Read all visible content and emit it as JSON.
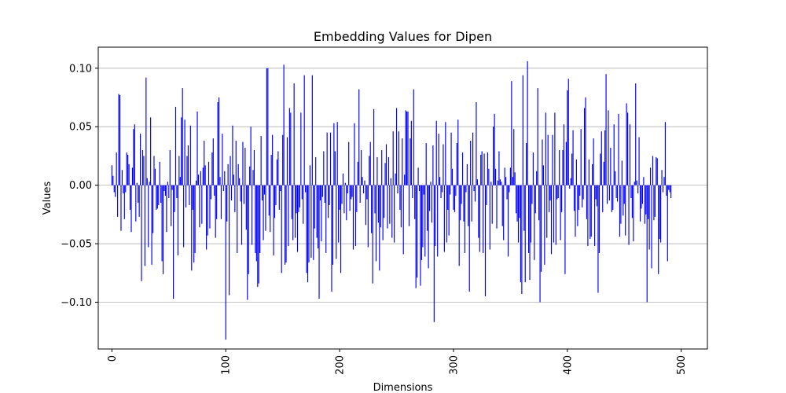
{
  "chart_data": {
    "type": "bar",
    "title": "Embedding Values for Dipen",
    "xlabel": "Dimensions",
    "ylabel": "Values",
    "xlim": [
      -12,
      523
    ],
    "ylim": [
      -0.14,
      0.118
    ],
    "grid": "y",
    "bar_color": "#0000ff",
    "xticks": [
      0,
      100,
      200,
      300,
      400,
      500
    ],
    "yticks": [
      -0.1,
      -0.05,
      0.0,
      0.05,
      0.1
    ],
    "xtick_labels": [
      "0",
      "100",
      "200",
      "300",
      "400",
      "500"
    ],
    "ytick_labels": [
      "−0.10",
      "−0.05",
      "0.00",
      "0.05",
      "0.10"
    ],
    "series": [
      {
        "values": [
          0.017,
          0.008,
          -0.006,
          -0.01,
          0.028,
          -0.027,
          0.078,
          0.077,
          -0.039,
          0.013,
          -0.007,
          -0.029,
          -0.006,
          0.028,
          0.026,
          0.018,
          -0.021,
          -0.04,
          0.015,
          0.048,
          0.052,
          -0.031,
          0.002,
          -0.015,
          -0.027,
          0.044,
          -0.082,
          0.03,
          0.025,
          -0.069,
          0.092,
          0.006,
          -0.053,
          0.003,
          0.058,
          -0.068,
          -0.041,
          0.025,
          0.014,
          -0.021,
          -0.02,
          -0.017,
          0.02,
          -0.015,
          -0.065,
          -0.076,
          -0.005,
          -0.009,
          -0.04,
          0.003,
          -0.011,
          0.03,
          -0.035,
          -0.004,
          -0.097,
          -0.023,
          0.067,
          -0.011,
          -0.06,
          0.025,
          0.007,
          0.058,
          0.083,
          -0.053,
          0.056,
          -0.019,
          0.025,
          0.034,
          -0.017,
          0.051,
          -0.073,
          -0.021,
          -0.066,
          -0.058,
          0.004,
          0.063,
          0.009,
          -0.036,
          0.012,
          -0.033,
          0.015,
          0.038,
          0.017,
          -0.055,
          -0.043,
          0.02,
          -0.037,
          -0.012,
          0.028,
          0.04,
          -0.009,
          -0.045,
          -0.029,
          0.071,
          0.075,
          0.007,
          -0.029,
          0.044,
          -0.005,
          0.012,
          -0.132,
          -0.031,
          0.018,
          -0.094,
          0.025,
          -0.013,
          0.051,
          0.009,
          -0.023,
          0.038,
          -0.058,
          0.018,
          0.006,
          -0.014,
          -0.051,
          0.037,
          -0.016,
          0.032,
          -0.038,
          -0.098,
          -0.076,
          0.016,
          0.05,
          -0.051,
          0.013,
          0.03,
          -0.058,
          -0.065,
          -0.087,
          -0.084,
          -0.058,
          0.042,
          -0.013,
          -0.047,
          -0.008,
          -0.039,
          0.1,
          0.1,
          -0.026,
          -0.04,
          0.026,
          0.043,
          -0.06,
          -0.028,
          -0.017,
          0.022,
          0.029,
          -0.021,
          -0.005,
          -0.075,
          0.043,
          0.103,
          -0.068,
          -0.066,
          0.041,
          -0.052,
          0.066,
          0.062,
          -0.029,
          -0.047,
          0.087,
          -0.045,
          -0.024,
          -0.057,
          -0.023,
          -0.019,
          0.062,
          -0.012,
          -0.033,
          0.094,
          -0.006,
          -0.075,
          -0.083,
          -0.066,
          0.017,
          -0.062,
          0.094,
          -0.064,
          -0.037,
          0.024,
          -0.045,
          -0.054,
          -0.097,
          -0.013,
          -0.048,
          -0.01,
          0.029,
          -0.015,
          -0.058,
          0.045,
          -0.028,
          -0.017,
          0.045,
          -0.091,
          -0.068,
          0.053,
          0.029,
          -0.063,
          0.054,
          -0.049,
          -0.021,
          -0.075,
          -0.016,
          0.01,
          -0.024,
          0.002,
          -0.03,
          -0.007,
          0.037,
          -0.022,
          -0.012,
          -0.01,
          -0.055,
          0.053,
          -0.052,
          -0.023,
          0.02,
          0.082,
          -0.015,
          0.03,
          0.007,
          -0.007,
          0.004,
          -0.034,
          -0.012,
          -0.053,
          0.025,
          0.037,
          -0.041,
          -0.084,
          0.065,
          -0.024,
          -0.065,
          0.024,
          -0.032,
          -0.073,
          -0.036,
          0.03,
          -0.047,
          -0.028,
          0.019,
          0.035,
          -0.037,
          0.024,
          -0.033,
          0.006,
          -0.045,
          0.046,
          -0.049,
          0.01,
          0.066,
          -0.007,
          0.046,
          -0.021,
          -0.036,
          0.04,
          -0.059,
          0.009,
          0.064,
          0.063,
          0.063,
          -0.035,
          0.04,
          0.055,
          -0.011,
          0.082,
          -0.029,
          -0.088,
          -0.079,
          0.015,
          -0.005,
          -0.086,
          -0.064,
          -0.053,
          -0.008,
          -0.061,
          0.036,
          -0.039,
          -0.071,
          -0.022,
          0.003,
          -0.032,
          0.034,
          -0.117,
          -0.052,
          0.055,
          -0.061,
          0.044,
          0.007,
          -0.011,
          -0.006,
          0.035,
          -0.057,
          0.054,
          -0.049,
          -0.021,
          -0.043,
          -0.008,
          0.045,
          0.014,
          -0.021,
          -0.023,
          -0.009,
          0.036,
          0.056,
          -0.069,
          -0.03,
          -0.016,
          0.028,
          -0.031,
          -0.058,
          -0.006,
          0.018,
          -0.035,
          -0.091,
          0.038,
          -0.031,
          0.045,
          -0.005,
          -0.014,
          0.071,
          0.005,
          -0.045,
          -0.057,
          0.026,
          0.029,
          -0.058,
          0.027,
          -0.095,
          -0.017,
          0.028,
          0.014,
          -0.055,
          0.003,
          -0.033,
          0.05,
          0.061,
          0.014,
          -0.037,
          0.004,
          0.029,
          0.005,
          0.003,
          -0.035,
          -0.047,
          0.015,
          0.007,
          -0.012,
          -0.061,
          -0.006,
          0.015,
          0.089,
          0.007,
          0.048,
          0.011,
          -0.024,
          -0.031,
          -0.049,
          -0.028,
          -0.083,
          -0.093,
          0.094,
          -0.039,
          -0.083,
          0.036,
          0.106,
          -0.058,
          -0.081,
          -0.049,
          -0.016,
          0.028,
          -0.064,
          -0.024,
          0.012,
          0.083,
          -0.03,
          -0.1,
          -0.074,
          0.039,
          0.017,
          -0.068,
          0.062,
          -0.045,
          0.043,
          -0.023,
          -0.013,
          -0.059,
          0.043,
          -0.049,
          0.062,
          -0.051,
          -0.012,
          -0.011,
          0.03,
          -0.047,
          -0.023,
          0.03,
          0.052,
          -0.076,
          0.037,
          0.081,
          0.091,
          -0.003,
          0.006,
          0.027,
          0.047,
          -0.022,
          -0.044,
          0.022,
          -0.035,
          -0.021,
          -0.009,
          0.048,
          -0.019,
          -0.012,
          0.066,
          0.075,
          -0.029,
          -0.052,
          0.022,
          -0.046,
          -0.044,
          0.018,
          0.04,
          -0.052,
          -0.012,
          -0.018,
          -0.092,
          -0.058,
          0.027,
          0.046,
          -0.023,
          0.02,
          0.047,
          0.095,
          -0.016,
          0.064,
          -0.013,
          0.032,
          -0.023,
          -0.021,
          0.052,
          0.012,
          -0.011,
          -0.014,
          0.061,
          -0.044,
          -0.033,
          0.021,
          -0.026,
          -0.016,
          -0.043,
          0.07,
          0.062,
          -0.051,
          0.052,
          -0.011,
          -0.028,
          -0.048,
          0.003,
          0.087,
          0.004,
          -0.007,
          0.041,
          -0.031,
          -0.02,
          -0.016,
          0.007,
          -0.033,
          -0.025,
          -0.1,
          -0.029,
          -0.055,
          0.015,
          -0.071,
          0.025,
          -0.03,
          -0.027,
          0.024,
          0.023,
          -0.076,
          -0.046,
          -0.049,
          0.013,
          -0.006,
          0.007,
          0.054,
          -0.009,
          -0.065,
          -0.004,
          -0.006,
          -0.011
        ]
      }
    ]
  }
}
